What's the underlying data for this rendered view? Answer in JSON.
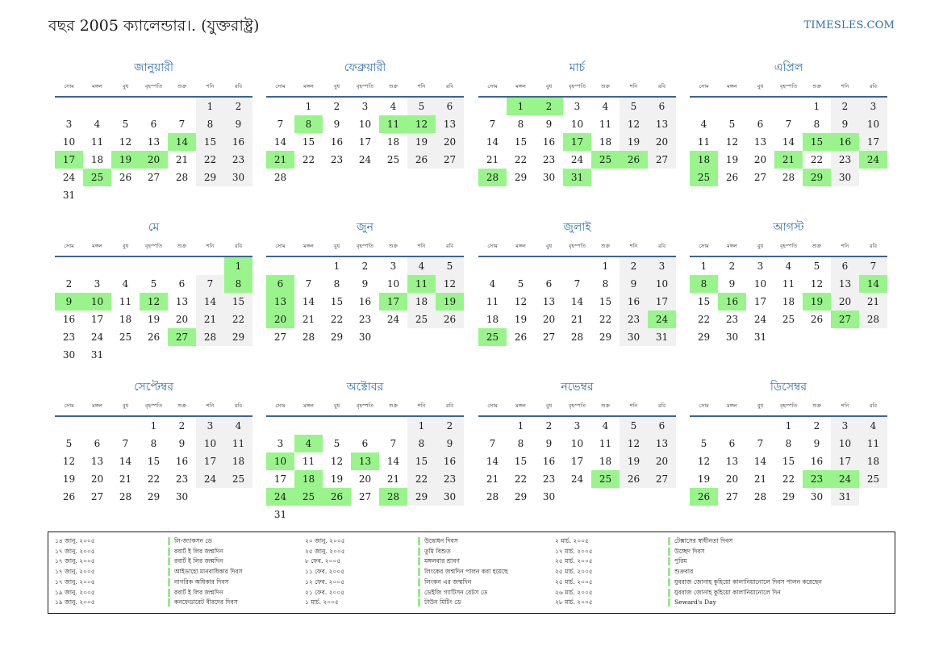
{
  "header": {
    "title": "বছর 2005 ক্যালেন্ডার।. (যুক্তরাষ্ট্র)",
    "site": "TIMESLES.COM"
  },
  "weekdays": [
    "সোম",
    "মঙ্গল",
    "বুধ",
    "বৃহস্পতি",
    "শুক্র",
    "শনি",
    "রবি"
  ],
  "colors": {
    "accent": "#2e6fa8",
    "holiday": "#99f58b",
    "weekend": "#f1f1f1",
    "rule": "#3c6496"
  },
  "months": [
    {
      "name": "জানুয়ারী",
      "start_offset": 5,
      "days": 31,
      "holidays": [
        14,
        17,
        19,
        20,
        25
      ]
    },
    {
      "name": "ফেব্রুয়ারী",
      "start_offset": 1,
      "days": 28,
      "holidays": [
        8,
        11,
        12,
        21
      ]
    },
    {
      "name": "মার্চ",
      "start_offset": 1,
      "days": 31,
      "holidays": [
        1,
        2,
        17,
        25,
        26,
        28,
        31
      ]
    },
    {
      "name": "এপ্রিল",
      "start_offset": 4,
      "days": 30,
      "holidays": [
        15,
        16,
        18,
        21,
        24,
        25,
        29
      ]
    },
    {
      "name": "মে",
      "start_offset": 6,
      "days": 31,
      "holidays": [
        1,
        8,
        9,
        10,
        12,
        27
      ]
    },
    {
      "name": "জুন",
      "start_offset": 2,
      "days": 30,
      "holidays": [
        6,
        11,
        13,
        17,
        19,
        20
      ]
    },
    {
      "name": "জুলাই",
      "start_offset": 4,
      "days": 31,
      "holidays": [
        24,
        25
      ]
    },
    {
      "name": "আগস্ট",
      "start_offset": 0,
      "days": 31,
      "holidays": [
        8,
        14,
        16,
        19,
        27
      ]
    },
    {
      "name": "সেপ্টেম্বর",
      "start_offset": 3,
      "days": 30,
      "holidays": []
    },
    {
      "name": "অক্টোবর",
      "start_offset": 5,
      "days": 31,
      "holidays": [
        4,
        10,
        13,
        18,
        24,
        25,
        26,
        28
      ]
    },
    {
      "name": "নভেম্বর",
      "start_offset": 1,
      "days": 30,
      "holidays": [
        25
      ]
    },
    {
      "name": "ডিসেম্বর",
      "start_offset": 3,
      "days": 31,
      "holidays": [
        23,
        24,
        26
      ]
    }
  ],
  "holiday_notes": [
    [
      {
        "date": "১৪ জানু. ২০০৫",
        "name": "লি-জ্যাকসন ডে"
      },
      {
        "date": "১৭ জানু. ২০০৫",
        "name": "রবার্ট ই লির জন্মদিন"
      },
      {
        "date": "১৭ জানু. ২০০৫",
        "name": "রবার্ট ই লির জন্মদিন"
      },
      {
        "date": "১৭ জানু. ২০০৫",
        "name": "আইডাহো মানবাধিকার দিবস"
      },
      {
        "date": "১৭ জানু. ২০০৫",
        "name": "নাগরিক অধিকার দিবস"
      },
      {
        "date": "১৯ জানু. ২০০৫",
        "name": "রবার্ট ই লির জন্মদিন"
      },
      {
        "date": "১৯ জানু. ২০০৫",
        "name": "কনফেডারেট বীরদের দিবস"
      }
    ],
    [
      {
        "date": "২০ জানু. ২০০৫",
        "name": "উদ্বোধন দিবস"
      },
      {
        "date": "২৫ জানু. ২০০৫",
        "name": "তুমি বিশুত"
      },
      {
        "date": "৮ ফেব. ২০০৫",
        "name": "মঙ্গলবার শ্রাবণ"
      },
      {
        "date": "১১ ফেব. ২০০৫",
        "name": "লিংকের জন্মদিন পালন করা হয়েছে"
      },
      {
        "date": "১২ ফেব. ২০০৫",
        "name": "লিংকন এর জন্মদিন"
      },
      {
        "date": "২১ ফেব. ২০০৫",
        "name": "ডেইজি গ্যাটিসন বেটস ডে"
      },
      {
        "date": "১ মার্চ. ২০০৫",
        "name": "টাউন মিটিং ডে"
      }
    ],
    [
      {
        "date": "২ মার্চ. ২০০৫",
        "name": "টেক্সাসের স্বাধীনতা দিবস"
      },
      {
        "date": "১৭ মার্চ. ২০০৫",
        "name": "উচ্ছেদ দিবস"
      },
      {
        "date": "২৫ মার্চ. ২০০৫",
        "name": "পুরিম"
      },
      {
        "date": "২৫ মার্চ. ২০০৫",
        "name": "শুক্রবার"
      },
      {
        "date": "২৫ মার্চ. ২০০৫",
        "name": "যুবরাজ জোনাহ কুহিয়ো কালানিয়ানোলে দিবস পালন করেছেন"
      },
      {
        "date": "২৬ মার্চ. ২০০৫",
        "name": "যুবরাজ জোনাহ কুহিয়ো কালানিয়ানোলে দিন"
      },
      {
        "date": "২৮ মার্চ. ২০০৫",
        "name": "Seward's Day"
      }
    ]
  ]
}
